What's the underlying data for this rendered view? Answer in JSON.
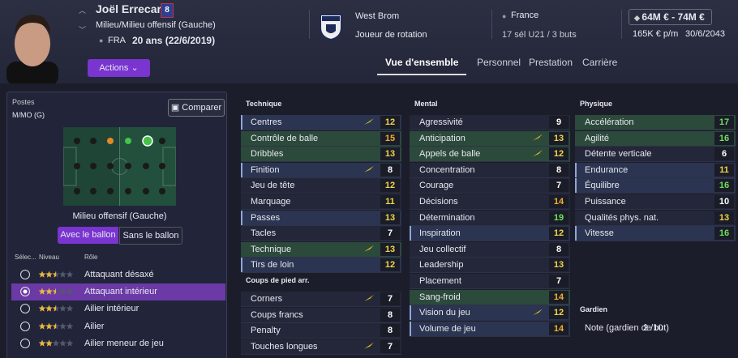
{
  "header": {
    "name": "Joël Errecart",
    "number": "8",
    "position": "Milieu/Milieu offensif (Gauche)",
    "nationality_code": "FRA",
    "age": "20 ans (22/6/2019)",
    "actions": "Actions",
    "club": "West Brom",
    "squad_status": "Joueur de rotation",
    "nation": "France",
    "caps": "17 sél U21 / 3 buts",
    "value": "64M € - 74M €",
    "wage": "165K € p/m",
    "contract_end": "30/6/2043"
  },
  "tabs": [
    "Vue d'ensemble",
    "Personnel",
    "Prestation",
    "Carrière"
  ],
  "left_panel": {
    "positions_label": "Postes",
    "positions": "M/MO (G)",
    "compare": "Comparer",
    "selected_position": "Milieu offensif (Gauche)",
    "toggle": [
      "Avec le ballon",
      "Sans le ballon"
    ],
    "role_headers": [
      "Sélec...",
      "Niveau",
      "Rôle"
    ],
    "roles": [
      {
        "name": "Attaquant désaxé",
        "level": 2.5,
        "selected": false
      },
      {
        "name": "Attaquant intérieur",
        "level": 2.5,
        "selected": true
      },
      {
        "name": "Ailier intérieur",
        "level": 2.5,
        "selected": false
      },
      {
        "name": "Ailier",
        "level": 2.5,
        "selected": false
      },
      {
        "name": "Ailier meneur de jeu",
        "level": 2,
        "selected": false
      }
    ]
  },
  "attributes": {
    "technique": {
      "title": "Technique",
      "rows": [
        {
          "name": "Centres",
          "value": 12,
          "arrow": true,
          "highlight": "blue"
        },
        {
          "name": "Contrôle de balle",
          "value": 15,
          "highlight": "green"
        },
        {
          "name": "Dribbles",
          "value": 13,
          "highlight": "green"
        },
        {
          "name": "Finition",
          "value": 8,
          "arrow": true,
          "highlight": "blue"
        },
        {
          "name": "Jeu de tête",
          "value": 12
        },
        {
          "name": "Marquage",
          "value": 11
        },
        {
          "name": "Passes",
          "value": 13,
          "highlight": "blue"
        },
        {
          "name": "Tacles",
          "value": 7
        },
        {
          "name": "Technique",
          "value": 13,
          "arrow": true,
          "highlight": "green"
        },
        {
          "name": "Tirs de loin",
          "value": 12,
          "highlight": "blue"
        }
      ]
    },
    "set_pieces": {
      "title": "Coups de pied arr.",
      "rows": [
        {
          "name": "Corners",
          "value": 7,
          "arrow": true
        },
        {
          "name": "Coups francs",
          "value": 8
        },
        {
          "name": "Penalty",
          "value": 8
        },
        {
          "name": "Touches longues",
          "value": 7,
          "arrow": true
        }
      ]
    },
    "mental": {
      "title": "Mental",
      "rows": [
        {
          "name": "Agressivité",
          "value": 9
        },
        {
          "name": "Anticipation",
          "value": 13,
          "arrow": true,
          "highlight": "green"
        },
        {
          "name": "Appels de balle",
          "value": 12,
          "arrow": true,
          "highlight": "green"
        },
        {
          "name": "Concentration",
          "value": 8
        },
        {
          "name": "Courage",
          "value": 7
        },
        {
          "name": "Décisions",
          "value": 14
        },
        {
          "name": "Détermination",
          "value": 19
        },
        {
          "name": "Inspiration",
          "value": 12,
          "highlight": "blue"
        },
        {
          "name": "Jeu collectif",
          "value": 8
        },
        {
          "name": "Leadership",
          "value": 13
        },
        {
          "name": "Placement",
          "value": 7
        },
        {
          "name": "Sang-froid",
          "value": 14,
          "highlight": "green"
        },
        {
          "name": "Vision du jeu",
          "value": 12,
          "arrow": true,
          "highlight": "blue"
        },
        {
          "name": "Volume de jeu",
          "value": 14,
          "highlight": "blue"
        }
      ]
    },
    "physical": {
      "title": "Physique",
      "rows": [
        {
          "name": "Accélération",
          "value": 17,
          "highlight": "green"
        },
        {
          "name": "Agilité",
          "value": 16,
          "highlight": "green"
        },
        {
          "name": "Détente verticale",
          "value": 6
        },
        {
          "name": "Endurance",
          "value": 11,
          "highlight": "blue"
        },
        {
          "name": "Équilibre",
          "value": 16,
          "highlight": "blue"
        },
        {
          "name": "Puissance",
          "value": 10
        },
        {
          "name": "Qualités phys. nat.",
          "value": 13
        },
        {
          "name": "Vitesse",
          "value": 16,
          "highlight": "blue"
        }
      ]
    },
    "goalkeeping": {
      "title": "Gardien",
      "rows": [
        {
          "name": "Note (gardien de but)",
          "value": "2 /10",
          "plain": true
        }
      ]
    }
  }
}
